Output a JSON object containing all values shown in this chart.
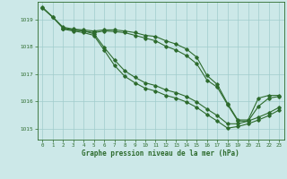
{
  "title": "Graphe pression niveau de la mer (hPa)",
  "bg_color": "#cce8e8",
  "grid_color": "#a0cccc",
  "line_color": "#2d6b2d",
  "xlim": [
    -0.5,
    23.5
  ],
  "ylim": [
    1014.6,
    1019.65
  ],
  "yticks": [
    1015,
    1016,
    1017,
    1018,
    1019
  ],
  "xticks": [
    0,
    1,
    2,
    3,
    4,
    5,
    6,
    7,
    8,
    9,
    10,
    11,
    12,
    13,
    14,
    15,
    16,
    17,
    18,
    19,
    20,
    21,
    22,
    23
  ],
  "line1": {
    "x": [
      0,
      1,
      2,
      3,
      4,
      5,
      6,
      7,
      8,
      9,
      10,
      11,
      12,
      13,
      14,
      15,
      16,
      17,
      18,
      19,
      20,
      21,
      22,
      23
    ],
    "y": [
      1019.45,
      1019.1,
      1018.72,
      1018.65,
      1018.62,
      1018.58,
      1018.62,
      1018.62,
      1018.58,
      1018.52,
      1018.42,
      1018.38,
      1018.22,
      1018.1,
      1017.92,
      1017.62,
      1016.95,
      1016.62,
      1015.92,
      1015.32,
      1015.32,
      1016.12,
      1016.22,
      1016.22
    ]
  },
  "line2": {
    "x": [
      0,
      1,
      2,
      3,
      4,
      5,
      6,
      7,
      8,
      9,
      10,
      11,
      12,
      13,
      14,
      15,
      16,
      17,
      18,
      19,
      20,
      21,
      22,
      23
    ],
    "y": [
      1019.42,
      1019.08,
      1018.68,
      1018.62,
      1018.58,
      1018.52,
      1018.58,
      1018.56,
      1018.52,
      1018.42,
      1018.32,
      1018.22,
      1018.02,
      1017.88,
      1017.68,
      1017.38,
      1016.78,
      1016.52,
      1015.88,
      1015.28,
      1015.28,
      1015.82,
      1016.12,
      1016.18
    ]
  },
  "line3": {
    "x": [
      2,
      3,
      4,
      5,
      6,
      7,
      8,
      9,
      10,
      11,
      12,
      13,
      14,
      15,
      16,
      17,
      18,
      19,
      20,
      21,
      22,
      23
    ],
    "y": [
      1018.68,
      1018.62,
      1018.58,
      1018.48,
      1017.98,
      1017.52,
      1017.12,
      1016.88,
      1016.68,
      1016.58,
      1016.42,
      1016.32,
      1016.18,
      1015.98,
      1015.72,
      1015.48,
      1015.18,
      1015.18,
      1015.28,
      1015.42,
      1015.58,
      1015.78
    ]
  },
  "line4": {
    "x": [
      2,
      3,
      4,
      5,
      6,
      7,
      8,
      9,
      10,
      11,
      12,
      13,
      14,
      15,
      16,
      17,
      18,
      19,
      20,
      21,
      22,
      23
    ],
    "y": [
      1018.65,
      1018.58,
      1018.52,
      1018.42,
      1017.88,
      1017.32,
      1016.92,
      1016.68,
      1016.48,
      1016.38,
      1016.22,
      1016.12,
      1015.98,
      1015.78,
      1015.52,
      1015.28,
      1015.02,
      1015.08,
      1015.18,
      1015.32,
      1015.48,
      1015.68
    ]
  }
}
